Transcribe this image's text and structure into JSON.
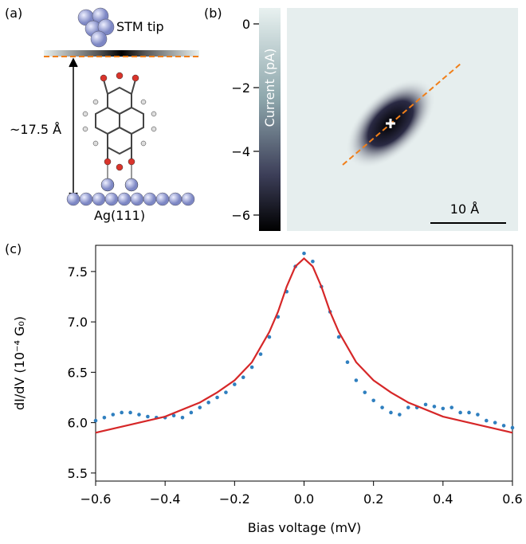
{
  "panels": {
    "a": {
      "label": "(a)",
      "tip_label": "STM tip",
      "distance_label": "~17.5 Å",
      "surface_label": "Ag(111)"
    },
    "b": {
      "label": "(b)",
      "colorbar": {
        "label": "Current (pA)",
        "lim": [
          -6.5,
          0.5
        ],
        "ticks": [
          0,
          {
            "value": -2,
            "label": "−2"
          },
          {
            "value": -4,
            "label": "−4"
          },
          {
            "value": -6,
            "label": "−6"
          }
        ]
      },
      "scale_bar": "10 Å"
    }
  },
  "chart_data": {
    "type": "scatter",
    "label": "(c)",
    "x_label": "Bias voltage (mV)",
    "y_label": "dI/dV (10⁻⁴ G₀)",
    "x": [
      -0.6,
      -0.575,
      -0.55,
      -0.525,
      -0.5,
      -0.475,
      -0.45,
      -0.425,
      -0.4,
      -0.375,
      -0.35,
      -0.325,
      -0.3,
      -0.275,
      -0.25,
      -0.225,
      -0.2,
      -0.175,
      -0.15,
      -0.125,
      -0.1,
      -0.075,
      -0.05,
      -0.025,
      0,
      0.025,
      0.05,
      0.075,
      0.1,
      0.125,
      0.15,
      0.175,
      0.2,
      0.225,
      0.25,
      0.275,
      0.3,
      0.325,
      0.35,
      0.375,
      0.4,
      0.425,
      0.45,
      0.475,
      0.5,
      0.525,
      0.55,
      0.575,
      0.6
    ],
    "values": [
      6.02,
      6.05,
      6.08,
      6.1,
      6.1,
      6.08,
      6.06,
      6.05,
      6.05,
      6.07,
      6.05,
      6.1,
      6.15,
      6.2,
      6.25,
      6.3,
      6.38,
      6.45,
      6.55,
      6.68,
      6.85,
      7.05,
      7.3,
      7.55,
      7.68,
      7.6,
      7.35,
      7.1,
      6.85,
      6.6,
      6.42,
      6.3,
      6.22,
      6.15,
      6.1,
      6.08,
      6.15,
      6.15,
      6.18,
      6.16,
      6.14,
      6.15,
      6.1,
      6.1,
      6.08,
      6.02,
      6.0,
      5.97,
      5.95
    ],
    "color": "#2f7fbf",
    "fit_x": [
      -0.6,
      -0.5,
      -0.4,
      -0.3,
      -0.25,
      -0.2,
      -0.15,
      -0.1,
      -0.075,
      -0.05,
      -0.025,
      0,
      0.025,
      0.05,
      0.075,
      0.1,
      0.15,
      0.2,
      0.25,
      0.3,
      0.4,
      0.5,
      0.6
    ],
    "fit_values": [
      5.9,
      5.98,
      6.06,
      6.2,
      6.3,
      6.42,
      6.6,
      6.9,
      7.1,
      7.35,
      7.55,
      7.63,
      7.55,
      7.35,
      7.1,
      6.9,
      6.6,
      6.42,
      6.3,
      6.2,
      6.06,
      5.98,
      5.9
    ],
    "fit_color": "#d62728",
    "xlim": [
      -0.6,
      0.6
    ],
    "xticks": [
      {
        "value": -0.6,
        "label": "−0.6"
      },
      {
        "value": -0.4,
        "label": "−0.4"
      },
      {
        "value": -0.2,
        "label": "−0.2"
      },
      {
        "value": 0,
        "label": "0.0"
      },
      0.2,
      0.4,
      0.6
    ],
    "ylim": [
      5.42,
      7.76
    ],
    "yticks": [
      5.5,
      {
        "value": 6,
        "label": "6.0"
      },
      6.5,
      {
        "value": 7,
        "label": "7.0"
      },
      7.5
    ]
  }
}
